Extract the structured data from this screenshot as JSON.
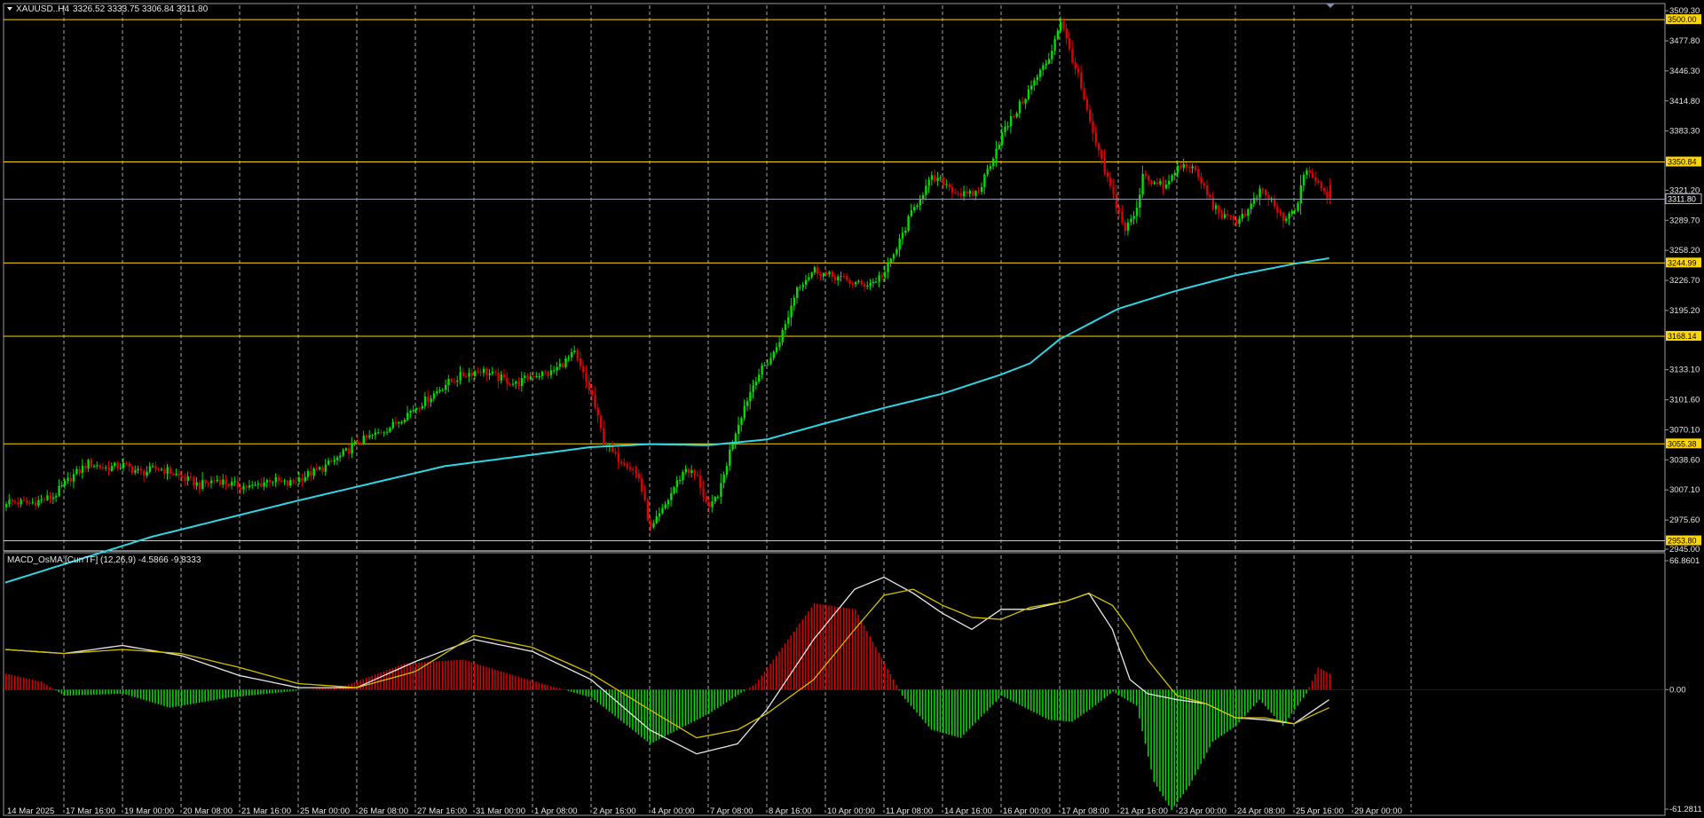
{
  "header": {
    "symbol": "XAUUSD..H4",
    "ohlc": "3326.52 3333.75 3306.84 3311.80"
  },
  "macd_header": {
    "label": "MACD_OsMA [CurrTF] (12,26,9) -4.5866 -9.8333"
  },
  "colors": {
    "background": "#000000",
    "bull": "#00e000",
    "bear": "#e00000",
    "ma": "#30d5e5",
    "level": "#ffd700",
    "grid": "#cfcfcf",
    "macd_line": "#e8e8e8",
    "signal_line": "#d4c000",
    "text": "#e6e6e6"
  },
  "price_axis": {
    "ticks": [
      "3509.30",
      "3477.80",
      "3446.30",
      "3414.80",
      "3383.30",
      "3321.20",
      "3289.70",
      "3258.20",
      "3226.70",
      "3195.20",
      "3133.10",
      "3101.60",
      "3070.10",
      "3038.60",
      "3007.10",
      "2975.60",
      "2945.00"
    ],
    "current": "3311.80"
  },
  "levels": [
    "3500.00",
    "3350.84",
    "3244.99",
    "3168.14",
    "3055.38",
    "2953.80"
  ],
  "macd_axis": {
    "ticks": [
      "66.8601",
      "0.00",
      "-61.2811"
    ]
  },
  "time_axis": {
    "labels": [
      "14 Mar 2025",
      "17 Mar 16:00",
      "19 Mar 00:00",
      "20 Mar 08:00",
      "21 Mar 16:00",
      "25 Mar 00:00",
      "26 Mar 08:00",
      "27 Mar 16:00",
      "31 Mar 00:00",
      "1 Apr 08:00",
      "2 Apr 16:00",
      "4 Apr 00:00",
      "7 Apr 08:00",
      "8 Apr 16:00",
      "10 Apr 00:00",
      "11 Apr 08:00",
      "14 Apr 16:00",
      "16 Apr 00:00",
      "17 Apr 08:00",
      "21 Apr 16:00",
      "23 Apr 00:00",
      "24 Apr 08:00",
      "25 Apr 16:00",
      "29 Apr 00:00"
    ]
  },
  "chart_data": [
    {
      "type": "candlestick",
      "symbol": "XAUUSD..H4",
      "ylim": [
        2945.0,
        3515.0
      ],
      "last_ohlc": {
        "open": 3326.52,
        "high": 3333.75,
        "low": 3306.84,
        "close": 3311.8
      },
      "close_path": [
        [
          0,
          2995
        ],
        [
          8,
          2993
        ],
        [
          16,
          3000
        ],
        [
          22,
          3020
        ],
        [
          28,
          3035
        ],
        [
          34,
          3030
        ],
        [
          40,
          3033
        ],
        [
          46,
          3025
        ],
        [
          52,
          3030
        ],
        [
          56,
          3026
        ],
        [
          60,
          3020
        ],
        [
          66,
          3012
        ],
        [
          72,
          3018
        ],
        [
          78,
          3012
        ],
        [
          84,
          3010
        ],
        [
          90,
          3018
        ],
        [
          96,
          3013
        ],
        [
          102,
          3022
        ],
        [
          108,
          3030
        ],
        [
          114,
          3042
        ],
        [
          120,
          3057
        ],
        [
          126,
          3065
        ],
        [
          132,
          3075
        ],
        [
          138,
          3090
        ],
        [
          144,
          3103
        ],
        [
          150,
          3118
        ],
        [
          156,
          3128
        ],
        [
          162,
          3133
        ],
        [
          168,
          3125
        ],
        [
          174,
          3118
        ],
        [
          180,
          3128
        ],
        [
          186,
          3130
        ],
        [
          190,
          3140
        ],
        [
          194,
          3150
        ],
        [
          196,
          3135
        ],
        [
          200,
          3105
        ],
        [
          204,
          3058
        ],
        [
          208,
          3042
        ],
        [
          212,
          3035
        ],
        [
          216,
          3020
        ],
        [
          220,
          2965
        ],
        [
          224,
          2985
        ],
        [
          228,
          3010
        ],
        [
          232,
          3030
        ],
        [
          236,
          3020
        ],
        [
          240,
          2985
        ],
        [
          244,
          3010
        ],
        [
          248,
          3060
        ],
        [
          252,
          3095
        ],
        [
          256,
          3125
        ],
        [
          262,
          3150
        ],
        [
          266,
          3180
        ],
        [
          270,
          3220
        ],
        [
          276,
          3238
        ],
        [
          280,
          3232
        ],
        [
          284,
          3230
        ],
        [
          288,
          3225
        ],
        [
          292,
          3222
        ],
        [
          296,
          3225
        ],
        [
          300,
          3235
        ],
        [
          304,
          3260
        ],
        [
          308,
          3290
        ],
        [
          312,
          3315
        ],
        [
          316,
          3333
        ],
        [
          320,
          3330
        ],
        [
          324,
          3320
        ],
        [
          328,
          3315
        ],
        [
          332,
          3320
        ],
        [
          336,
          3350
        ],
        [
          340,
          3380
        ],
        [
          344,
          3400
        ],
        [
          348,
          3420
        ],
        [
          352,
          3440
        ],
        [
          356,
          3460
        ],
        [
          360,
          3500
        ],
        [
          362,
          3478
        ],
        [
          366,
          3440
        ],
        [
          370,
          3390
        ],
        [
          374,
          3350
        ],
        [
          378,
          3315
        ],
        [
          382,
          3280
        ],
        [
          386,
          3300
        ],
        [
          388,
          3340
        ],
        [
          392,
          3328
        ],
        [
          396,
          3325
        ],
        [
          400,
          3345
        ],
        [
          404,
          3348
        ],
        [
          408,
          3330
        ],
        [
          412,
          3305
        ],
        [
          416,
          3292
        ],
        [
          420,
          3290
        ],
        [
          424,
          3300
        ],
        [
          428,
          3320
        ],
        [
          432,
          3310
        ],
        [
          436,
          3288
        ],
        [
          440,
          3300
        ],
        [
          444,
          3345
        ],
        [
          448,
          3326
        ],
        [
          452,
          3311.8
        ]
      ]
    },
    {
      "type": "line",
      "name": "moving-average",
      "ylim": [
        2945.0,
        3515.0
      ],
      "points": [
        [
          0,
          2910
        ],
        [
          50,
          2958
        ],
        [
          100,
          2996
        ],
        [
          150,
          3032
        ],
        [
          200,
          3052
        ],
        [
          220,
          3055
        ],
        [
          240,
          3054
        ],
        [
          260,
          3060
        ],
        [
          280,
          3077
        ],
        [
          300,
          3093
        ],
        [
          320,
          3108
        ],
        [
          340,
          3128
        ],
        [
          350,
          3140
        ],
        [
          360,
          3165
        ],
        [
          380,
          3197
        ],
        [
          400,
          3216
        ],
        [
          420,
          3232
        ],
        [
          440,
          3244
        ],
        [
          452,
          3250
        ]
      ]
    },
    {
      "type": "bar",
      "name": "osma-histogram",
      "ylim": [
        -61.28,
        66.86
      ],
      "points": [
        [
          0,
          8
        ],
        [
          12,
          4
        ],
        [
          20,
          -3
        ],
        [
          40,
          -2
        ],
        [
          56,
          -9
        ],
        [
          76,
          -4
        ],
        [
          96,
          -1
        ],
        [
          116,
          2
        ],
        [
          136,
          13
        ],
        [
          156,
          15
        ],
        [
          176,
          6
        ],
        [
          200,
          -4
        ],
        [
          220,
          -27
        ],
        [
          240,
          -12
        ],
        [
          256,
          3
        ],
        [
          276,
          43
        ],
        [
          290,
          40
        ],
        [
          306,
          -3
        ],
        [
          316,
          -20
        ],
        [
          326,
          -24
        ],
        [
          340,
          -3
        ],
        [
          356,
          -15
        ],
        [
          364,
          -16
        ],
        [
          370,
          -10
        ],
        [
          378,
          -1
        ],
        [
          386,
          -8
        ],
        [
          392,
          -46
        ],
        [
          398,
          -60
        ],
        [
          404,
          -48
        ],
        [
          412,
          -26
        ],
        [
          420,
          -18
        ],
        [
          428,
          -5
        ],
        [
          436,
          -18
        ],
        [
          444,
          -2
        ],
        [
          448,
          11
        ],
        [
          452,
          8
        ]
      ]
    },
    {
      "type": "line",
      "name": "macd-line",
      "ylim": [
        -61.28,
        66.86
      ],
      "points": [
        [
          0,
          20
        ],
        [
          20,
          18
        ],
        [
          40,
          22
        ],
        [
          60,
          17
        ],
        [
          80,
          7
        ],
        [
          100,
          1
        ],
        [
          120,
          1
        ],
        [
          140,
          14
        ],
        [
          160,
          25
        ],
        [
          180,
          19
        ],
        [
          200,
          5
        ],
        [
          220,
          -20
        ],
        [
          236,
          -32
        ],
        [
          250,
          -27
        ],
        [
          260,
          -10
        ],
        [
          276,
          25
        ],
        [
          290,
          50
        ],
        [
          300,
          56
        ],
        [
          310,
          48
        ],
        [
          320,
          38
        ],
        [
          330,
          30
        ],
        [
          340,
          40
        ],
        [
          350,
          40
        ],
        [
          362,
          44
        ],
        [
          370,
          48
        ],
        [
          378,
          30
        ],
        [
          384,
          5
        ],
        [
          390,
          -2
        ],
        [
          400,
          -5
        ],
        [
          410,
          -7
        ],
        [
          420,
          -14
        ],
        [
          430,
          -15
        ],
        [
          440,
          -17
        ],
        [
          452,
          -5
        ]
      ]
    },
    {
      "type": "line",
      "name": "signal-line",
      "ylim": [
        -61.28,
        66.86
      ],
      "points": [
        [
          0,
          20
        ],
        [
          20,
          18
        ],
        [
          40,
          20
        ],
        [
          60,
          18
        ],
        [
          80,
          11
        ],
        [
          100,
          3
        ],
        [
          120,
          1
        ],
        [
          140,
          9
        ],
        [
          160,
          27
        ],
        [
          180,
          21
        ],
        [
          200,
          8
        ],
        [
          220,
          -10
        ],
        [
          236,
          -24
        ],
        [
          250,
          -20
        ],
        [
          260,
          -12
        ],
        [
          276,
          5
        ],
        [
          290,
          30
        ],
        [
          300,
          47
        ],
        [
          310,
          50
        ],
        [
          320,
          42
        ],
        [
          330,
          36
        ],
        [
          340,
          35
        ],
        [
          350,
          41
        ],
        [
          362,
          44
        ],
        [
          370,
          48
        ],
        [
          378,
          42
        ],
        [
          384,
          30
        ],
        [
          390,
          15
        ],
        [
          400,
          -3
        ],
        [
          410,
          -7
        ],
        [
          420,
          -14
        ],
        [
          430,
          -14
        ],
        [
          440,
          -17
        ],
        [
          452,
          -9
        ]
      ]
    }
  ]
}
